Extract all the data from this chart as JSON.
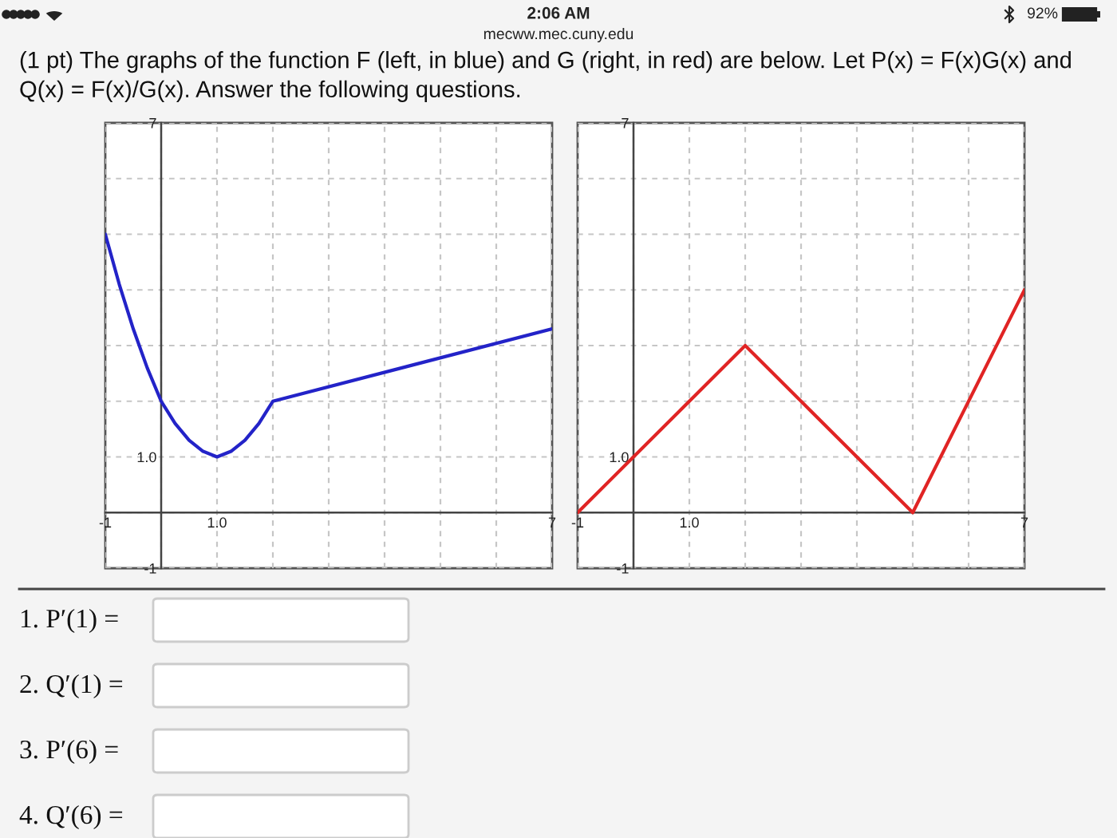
{
  "chart_data": [
    {
      "type": "line",
      "xlim": [
        -1,
        7
      ],
      "ylim": [
        -1,
        7
      ],
      "xticks": [
        -1,
        {
          "value": 0,
          "label": null
        },
        {
          "value": 1,
          "label": "1.0"
        },
        {
          "value": 2,
          "label": null
        },
        {
          "value": 3,
          "label": null
        },
        {
          "value": 4,
          "label": null
        },
        {
          "value": 5,
          "label": null
        },
        {
          "value": 6,
          "label": null
        },
        7
      ],
      "yticks": [
        -1,
        {
          "value": 0,
          "label": null
        },
        {
          "value": 1,
          "label": "1.0"
        },
        {
          "value": 2,
          "label": null
        },
        {
          "value": 3,
          "label": null
        },
        {
          "value": 4,
          "label": null
        },
        {
          "value": 5,
          "label": null
        },
        {
          "value": 6,
          "label": null
        },
        7
      ],
      "grid": true,
      "series": [
        {
          "color": "#2323c8",
          "x": [
            -1,
            -0.75,
            -0.5,
            -0.25,
            0,
            0.25,
            0.5,
            0.75,
            1,
            1.25,
            1.5,
            1.75,
            2,
            7
          ],
          "values": [
            5,
            4.1,
            3.3,
            2.6,
            2,
            1.6,
            1.3,
            1.1,
            1,
            1.1,
            1.3,
            1.6,
            2,
            3.3
          ]
        }
      ]
    },
    {
      "type": "line",
      "xlim": [
        -1,
        7
      ],
      "ylim": [
        -1,
        7
      ],
      "xticks": [
        -1,
        {
          "value": 0,
          "label": null
        },
        {
          "value": 1,
          "label": "1.0"
        },
        {
          "value": 2,
          "label": null
        },
        {
          "value": 3,
          "label": null
        },
        {
          "value": 4,
          "label": null
        },
        {
          "value": 5,
          "label": null
        },
        {
          "value": 6,
          "label": null
        },
        7
      ],
      "yticks": [
        -1,
        {
          "value": 0,
          "label": null
        },
        {
          "value": 1,
          "label": "1.0"
        },
        {
          "value": 2,
          "label": null
        },
        {
          "value": 3,
          "label": null
        },
        {
          "value": 4,
          "label": null
        },
        {
          "value": 5,
          "label": null
        },
        {
          "value": 6,
          "label": null
        },
        7
      ],
      "grid": true,
      "series": [
        {
          "color": "#e02424",
          "x": [
            -1,
            2,
            5,
            7
          ],
          "values": [
            0,
            3,
            0,
            4
          ]
        }
      ]
    },
    {
      "type": "other",
      "title": "(1 pt) The graphs of the function F (left, in blue) and G (right, in red) are below. Let P(x) = F(x)G(x) and Q(x) = F(x)/G(x). Answer the following questions.",
      "annotations": [
        "2:06 AM",
        "mecww.mec.cuny.edu",
        "92%",
        "1. P′(1) =",
        "2. Q′(1) =",
        "3. P′(6) =",
        "4. Q′(6) ="
      ]
    }
  ]
}
